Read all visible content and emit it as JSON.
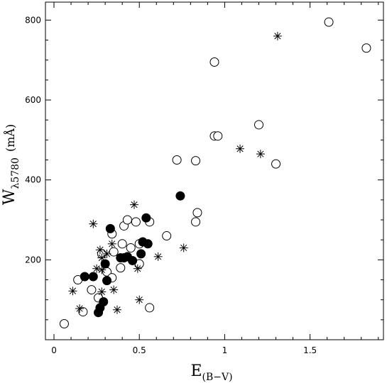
{
  "chart_data": {
    "type": "scatter",
    "xlabel": "E",
    "xlabel_sub": "(B−V)",
    "ylabel": "W",
    "ylabel_sub": "λ5780",
    "ylabel_unit": "(mÅ)",
    "xlim": [
      -0.05,
      1.93
    ],
    "ylim": [
      0,
      845
    ],
    "xticks": [
      {
        "value": 0,
        "label": "0"
      },
      {
        "value": 0.5,
        "label": "0.5"
      },
      {
        "value": 1,
        "label": "1"
      },
      {
        "value": 1.5,
        "label": "1.5"
      }
    ],
    "yticks": [
      {
        "value": 200,
        "label": "200"
      },
      {
        "value": 400,
        "label": "400"
      },
      {
        "value": 600,
        "label": "600"
      },
      {
        "value": 800,
        "label": "800"
      }
    ],
    "grid": false,
    "series": [
      {
        "marker": "open-circle",
        "color": "#000000",
        "points": [
          [
            0.06,
            40
          ],
          [
            0.14,
            150
          ],
          [
            0.17,
            70
          ],
          [
            0.22,
            125
          ],
          [
            0.26,
            105
          ],
          [
            0.28,
            215
          ],
          [
            0.31,
            170
          ],
          [
            0.34,
            265
          ],
          [
            0.34,
            155
          ],
          [
            0.35,
            220
          ],
          [
            0.39,
            180
          ],
          [
            0.4,
            240
          ],
          [
            0.41,
            285
          ],
          [
            0.43,
            300
          ],
          [
            0.45,
            230
          ],
          [
            0.48,
            295
          ],
          [
            0.5,
            190
          ],
          [
            0.5,
            240
          ],
          [
            0.56,
            295
          ],
          [
            0.56,
            80
          ],
          [
            0.66,
            260
          ],
          [
            0.72,
            450
          ],
          [
            0.83,
            295
          ],
          [
            0.83,
            448
          ],
          [
            0.84,
            318
          ],
          [
            0.94,
            695
          ],
          [
            0.94,
            510
          ],
          [
            0.96,
            510
          ],
          [
            1.2,
            538
          ],
          [
            1.3,
            440
          ],
          [
            1.61,
            795
          ],
          [
            1.83,
            730
          ]
        ]
      },
      {
        "marker": "filled-circle",
        "color": "#000000",
        "points": [
          [
            0.18,
            158
          ],
          [
            0.23,
            158
          ],
          [
            0.26,
            68
          ],
          [
            0.27,
            80
          ],
          [
            0.29,
            95
          ],
          [
            0.3,
            190
          ],
          [
            0.31,
            148
          ],
          [
            0.33,
            278
          ],
          [
            0.39,
            205
          ],
          [
            0.41,
            205
          ],
          [
            0.43,
            208
          ],
          [
            0.46,
            198
          ],
          [
            0.51,
            215
          ],
          [
            0.52,
            245
          ],
          [
            0.54,
            305
          ],
          [
            0.55,
            240
          ],
          [
            0.74,
            360
          ]
        ]
      },
      {
        "marker": "asterisk",
        "color": "#000000",
        "points": [
          [
            0.11,
            122
          ],
          [
            0.15,
            78
          ],
          [
            0.23,
            290
          ],
          [
            0.25,
            178
          ],
          [
            0.27,
            225
          ],
          [
            0.28,
            205
          ],
          [
            0.28,
            175
          ],
          [
            0.28,
            120
          ],
          [
            0.31,
            215
          ],
          [
            0.34,
            240
          ],
          [
            0.35,
            125
          ],
          [
            0.37,
            75
          ],
          [
            0.47,
            338
          ],
          [
            0.49,
            178
          ],
          [
            0.5,
            100
          ],
          [
            0.61,
            208
          ],
          [
            0.76,
            230
          ],
          [
            1.09,
            478
          ],
          [
            1.21,
            465
          ],
          [
            1.31,
            760
          ]
        ]
      }
    ]
  }
}
